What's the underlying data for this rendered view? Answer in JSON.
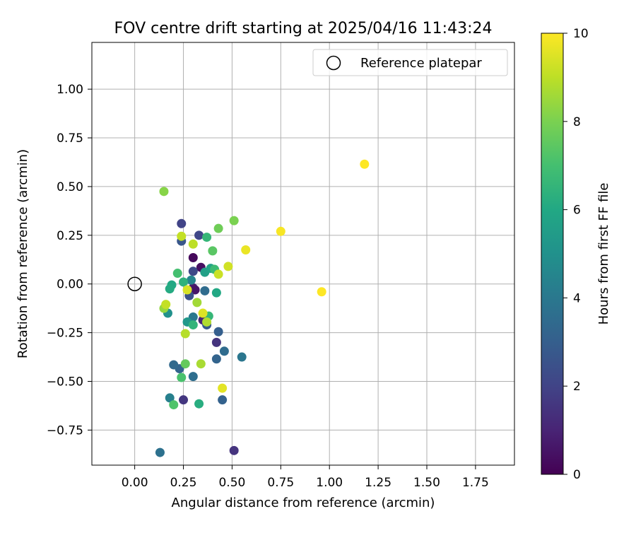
{
  "chart_data": {
    "type": "scatter",
    "title": "FOV centre drift starting at 2025/04/16 11:43:24",
    "xlabel": "Angular distance from reference (arcmin)",
    "ylabel": "Rotation from reference (arcmin)",
    "xlim": [
      -0.22,
      1.95
    ],
    "ylim": [
      -0.93,
      1.24
    ],
    "xticks": [
      0.0,
      0.25,
      0.5,
      0.75,
      1.0,
      1.25,
      1.5,
      1.75
    ],
    "xtick_labels": [
      "0.00",
      "0.25",
      "0.50",
      "0.75",
      "1.00",
      "1.25",
      "1.50",
      "1.75"
    ],
    "yticks": [
      -0.75,
      -0.5,
      -0.25,
      0.0,
      0.25,
      0.5,
      0.75,
      1.0
    ],
    "ytick_labels": [
      "−0.75",
      "−0.50",
      "−0.25",
      "0.00",
      "0.25",
      "0.50",
      "0.75",
      "1.00"
    ],
    "grid": true,
    "legend": {
      "position": "top-right",
      "entries": [
        {
          "label": "Reference platepar",
          "marker": "open-circle"
        }
      ]
    },
    "reference_point": {
      "x": 0.0,
      "y": 0.0
    },
    "colorbar": {
      "label": "Hours from first FF file",
      "colormap": "viridis",
      "range": [
        0,
        10
      ],
      "ticks": [
        0,
        2,
        4,
        6,
        8,
        10
      ],
      "tick_labels": [
        "0",
        "2",
        "4",
        "6",
        "8",
        "10"
      ]
    },
    "points": [
      {
        "x": 0.3,
        "y": 0.135,
        "h": 0.2
      },
      {
        "x": 0.34,
        "y": 0.085,
        "h": 0.4
      },
      {
        "x": 0.3,
        "y": -0.02,
        "h": 0.8
      },
      {
        "x": 0.31,
        "y": -0.03,
        "h": 0.6
      },
      {
        "x": 0.35,
        "y": -0.185,
        "h": 1.0
      },
      {
        "x": 0.51,
        "y": -0.855,
        "h": 1.5
      },
      {
        "x": 0.25,
        "y": -0.595,
        "h": 1.6
      },
      {
        "x": 0.42,
        "y": -0.3,
        "h": 1.5
      },
      {
        "x": 0.24,
        "y": 0.31,
        "h": 2.0
      },
      {
        "x": 0.33,
        "y": 0.25,
        "h": 2.1
      },
      {
        "x": 0.3,
        "y": 0.065,
        "h": 2.2
      },
      {
        "x": 0.28,
        "y": -0.06,
        "h": 2.5
      },
      {
        "x": 0.24,
        "y": 0.22,
        "h": 2.7
      },
      {
        "x": 0.37,
        "y": -0.21,
        "h": 2.8
      },
      {
        "x": 0.43,
        "y": -0.245,
        "h": 3.0
      },
      {
        "x": 0.45,
        "y": -0.595,
        "h": 3.1
      },
      {
        "x": 0.42,
        "y": -0.385,
        "h": 3.2
      },
      {
        "x": 0.23,
        "y": -0.435,
        "h": 3.2
      },
      {
        "x": 0.2,
        "y": -0.415,
        "h": 3.4
      },
      {
        "x": 0.46,
        "y": -0.345,
        "h": 3.5
      },
      {
        "x": 0.36,
        "y": -0.035,
        "h": 3.5
      },
      {
        "x": 0.3,
        "y": -0.475,
        "h": 3.6
      },
      {
        "x": 0.13,
        "y": -0.865,
        "h": 3.7
      },
      {
        "x": 0.55,
        "y": -0.375,
        "h": 3.9
      },
      {
        "x": 0.3,
        "y": -0.17,
        "h": 4.0
      },
      {
        "x": 0.18,
        "y": -0.585,
        "h": 4.3
      },
      {
        "x": 0.29,
        "y": 0.02,
        "h": 4.5
      },
      {
        "x": 0.17,
        "y": -0.15,
        "h": 5.0
      },
      {
        "x": 0.27,
        "y": -0.195,
        "h": 5.3
      },
      {
        "x": 0.36,
        "y": 0.06,
        "h": 5.6
      },
      {
        "x": 0.39,
        "y": 0.08,
        "h": 5.8
      },
      {
        "x": 0.42,
        "y": -0.045,
        "h": 6.0
      },
      {
        "x": 0.19,
        "y": -0.005,
        "h": 6.0
      },
      {
        "x": 0.18,
        "y": -0.025,
        "h": 6.1
      },
      {
        "x": 0.33,
        "y": -0.615,
        "h": 6.2
      },
      {
        "x": 0.25,
        "y": 0.01,
        "h": 6.4
      },
      {
        "x": 0.3,
        "y": -0.21,
        "h": 6.5
      },
      {
        "x": 0.37,
        "y": 0.24,
        "h": 6.6
      },
      {
        "x": 0.38,
        "y": -0.165,
        "h": 6.6
      },
      {
        "x": 0.41,
        "y": 0.075,
        "h": 6.8
      },
      {
        "x": 0.22,
        "y": 0.055,
        "h": 7.0
      },
      {
        "x": 0.24,
        "y": -0.48,
        "h": 7.1
      },
      {
        "x": 0.2,
        "y": -0.62,
        "h": 7.2
      },
      {
        "x": 0.4,
        "y": 0.17,
        "h": 7.4
      },
      {
        "x": 0.26,
        "y": -0.41,
        "h": 7.6
      },
      {
        "x": 0.43,
        "y": 0.285,
        "h": 7.8
      },
      {
        "x": 0.51,
        "y": 0.325,
        "h": 8.0
      },
      {
        "x": 0.15,
        "y": 0.475,
        "h": 8.2
      },
      {
        "x": 0.15,
        "y": -0.125,
        "h": 8.4
      },
      {
        "x": 0.32,
        "y": -0.095,
        "h": 8.6
      },
      {
        "x": 0.34,
        "y": -0.41,
        "h": 8.7
      },
      {
        "x": 0.37,
        "y": -0.195,
        "h": 8.8
      },
      {
        "x": 0.26,
        "y": -0.255,
        "h": 8.9
      },
      {
        "x": 0.3,
        "y": 0.205,
        "h": 9.0
      },
      {
        "x": 0.24,
        "y": 0.245,
        "h": 9.1
      },
      {
        "x": 0.16,
        "y": -0.105,
        "h": 9.1
      },
      {
        "x": 0.43,
        "y": 0.05,
        "h": 9.2
      },
      {
        "x": 0.48,
        "y": 0.09,
        "h": 9.3
      },
      {
        "x": 0.27,
        "y": -0.03,
        "h": 9.4
      },
      {
        "x": 0.35,
        "y": -0.15,
        "h": 9.5
      },
      {
        "x": 0.45,
        "y": -0.535,
        "h": 9.6
      },
      {
        "x": 0.57,
        "y": 0.175,
        "h": 9.7
      },
      {
        "x": 0.75,
        "y": 0.27,
        "h": 9.9
      },
      {
        "x": 0.96,
        "y": -0.04,
        "h": 10.0
      },
      {
        "x": 1.18,
        "y": 0.615,
        "h": 10.0
      }
    ]
  }
}
